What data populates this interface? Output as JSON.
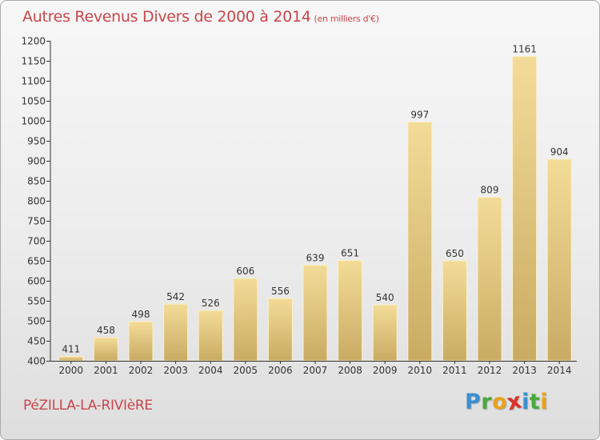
{
  "header": {
    "title": "Autres Revenus Divers de 2000 à 2014",
    "subtitle": "(en milliers d'€)"
  },
  "footer": {
    "city": "PéZILLA-LA-RIVIèRE",
    "logo": {
      "text": "Proxiti",
      "letters": [
        {
          "ch": "P",
          "color": "#3b8fd0"
        },
        {
          "ch": "r",
          "color": "#4aaa3c"
        },
        {
          "ch": "o",
          "color": "#e8a21c"
        },
        {
          "ch": "x",
          "color": "#d8332c"
        },
        {
          "ch": "i",
          "color": "#3b8fd0"
        },
        {
          "ch": "t",
          "color": "#4aaa3c"
        },
        {
          "ch": "i",
          "color": "#e8a21c"
        }
      ]
    }
  },
  "colors": {
    "title": "#c8464b",
    "bar_light": "#f3dc98",
    "bar_dark": "#c9ab63",
    "axis": "#333333"
  },
  "chart_data": {
    "type": "bar",
    "title": "Autres Revenus Divers de 2000 à 2014",
    "subtitle": "(en milliers d'€)",
    "categories": [
      "2000",
      "2001",
      "2002",
      "2003",
      "2004",
      "2005",
      "2006",
      "2007",
      "2008",
      "2009",
      "2010",
      "2011",
      "2012",
      "2013",
      "2014"
    ],
    "values": [
      411,
      458,
      498,
      542,
      526,
      606,
      556,
      639,
      651,
      540,
      997,
      650,
      809,
      1161,
      904
    ],
    "ylim": [
      400,
      1200
    ],
    "yticks": [
      400,
      450,
      500,
      550,
      600,
      650,
      700,
      750,
      800,
      850,
      900,
      950,
      1000,
      1050,
      1100,
      1150,
      1200
    ],
    "grid": false,
    "data_labels": true
  }
}
